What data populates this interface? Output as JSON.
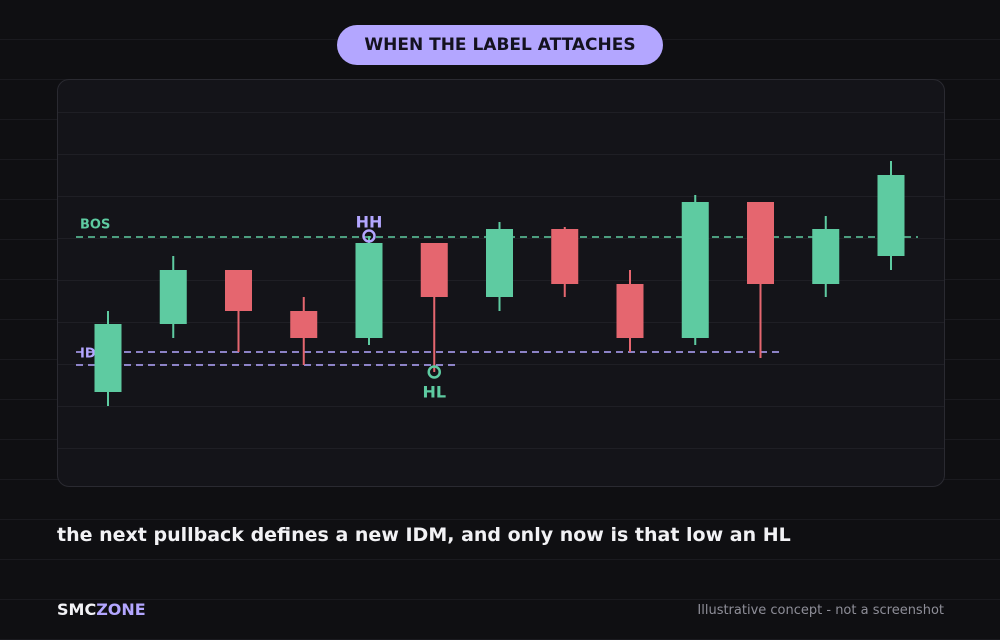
{
  "header": {
    "badge": "WHEN THE LABEL ATTACHES"
  },
  "chart_data": {
    "type": "candlestick",
    "ylim": [
      0,
      407
    ],
    "up_color": "#5ecba1",
    "down_color": "#e5666f",
    "ohlc": [
      {
        "open": 94,
        "high": 175,
        "low": 80,
        "close": 162
      },
      {
        "open": 162,
        "high": 230,
        "low": 148,
        "close": 216
      },
      {
        "open": 216,
        "high": 216,
        "low": 134,
        "close": 175
      },
      {
        "open": 175,
        "high": 189,
        "low": 121,
        "close": 148
      },
      {
        "open": 148,
        "high": 250,
        "low": 141,
        "close": 243
      },
      {
        "open": 243,
        "high": 243,
        "low": 114,
        "close": 189
      },
      {
        "open": 189,
        "high": 264,
        "low": 175,
        "close": 257
      },
      {
        "open": 257,
        "high": 259,
        "low": 189,
        "close": 202
      },
      {
        "open": 202,
        "high": 216,
        "low": 134,
        "close": 148
      },
      {
        "open": 148,
        "high": 291,
        "low": 141,
        "close": 284
      },
      {
        "open": 284,
        "high": 284,
        "low": 128,
        "close": 202
      },
      {
        "open": 202,
        "high": 270,
        "low": 189,
        "close": 257
      },
      {
        "open": 230,
        "high": 325,
        "low": 216,
        "close": 311
      }
    ],
    "levels": [
      {
        "name": "BOS",
        "value": 249,
        "color": "#5ecba1"
      },
      {
        "name": "IDM",
        "value": 134,
        "color": "#b3a6ff"
      },
      {
        "value": 121,
        "color": "#b3a6ff"
      }
    ],
    "annotations": [
      {
        "text": "HH",
        "color": "#b3a6ff"
      },
      {
        "text": "HL",
        "color": "#5ecba1"
      }
    ]
  },
  "caption": "the next pullback defines a new IDM, and only now is that low an HL",
  "footer": {
    "brand_a": "SMC",
    "brand_b": "ZONE",
    "note": "Illustrative concept - not a screenshot"
  }
}
